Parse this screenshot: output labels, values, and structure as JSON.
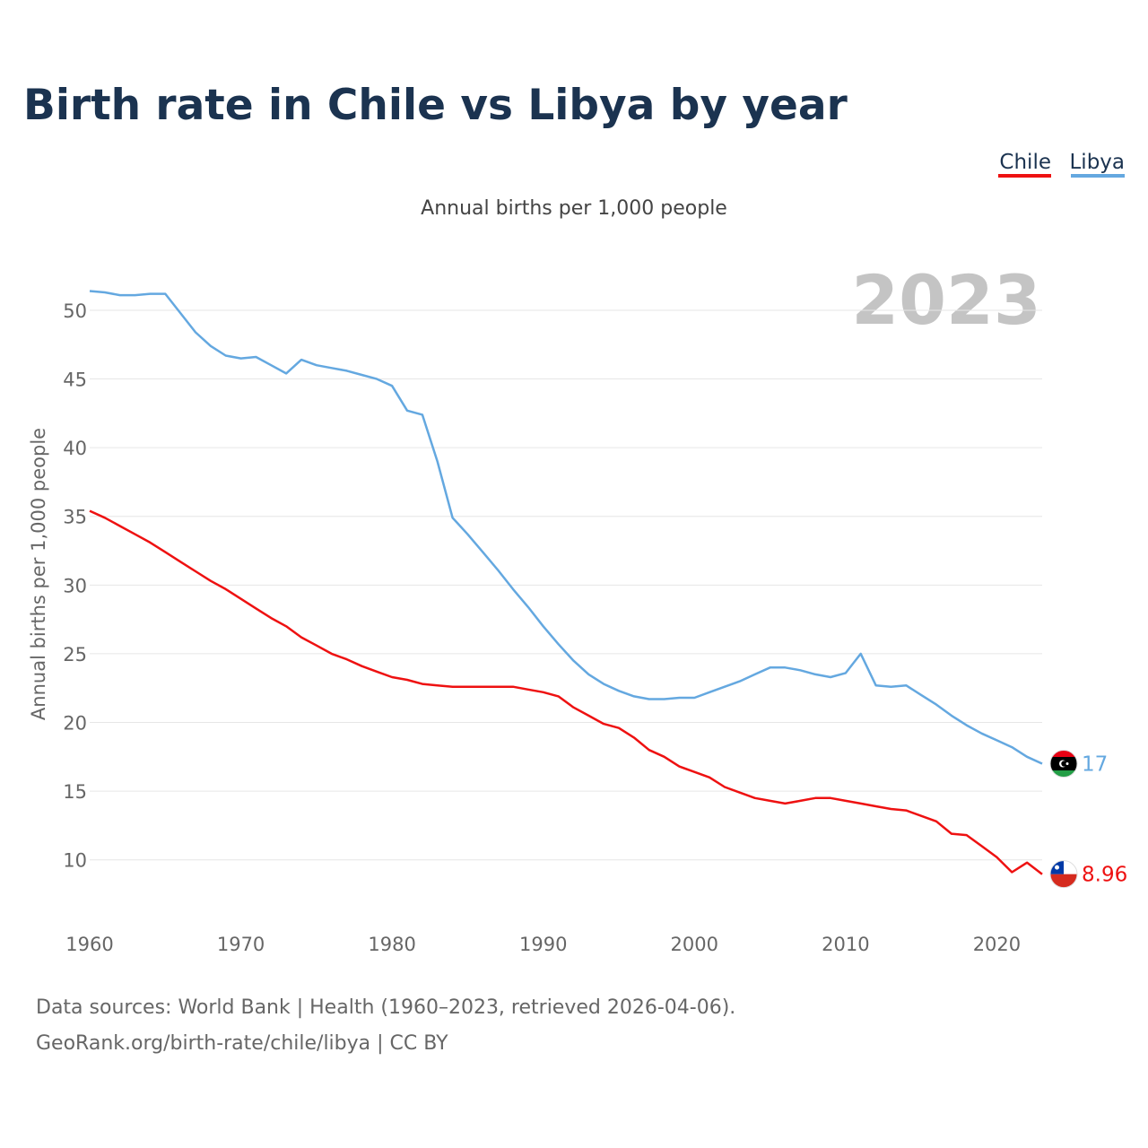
{
  "chart_data": {
    "type": "line",
    "title": "Birth rate in Chile vs Libya by year",
    "subtitle": "Annual births per 1,000 people",
    "ylabel": "Annual births per 1,000 people",
    "xlabel": "",
    "year_label": "2023",
    "xlim": [
      1960,
      2023
    ],
    "ylim": [
      6,
      53
    ],
    "x_ticks": [
      1960,
      1970,
      1980,
      1990,
      2000,
      2010,
      2020
    ],
    "y_ticks": [
      10,
      15,
      20,
      25,
      30,
      35,
      40,
      45,
      50
    ],
    "legend_position": "top-right",
    "grid": true,
    "x": [
      1960,
      1961,
      1962,
      1963,
      1964,
      1965,
      1966,
      1967,
      1968,
      1969,
      1970,
      1971,
      1972,
      1973,
      1974,
      1975,
      1976,
      1977,
      1978,
      1979,
      1980,
      1981,
      1982,
      1983,
      1984,
      1985,
      1986,
      1987,
      1988,
      1989,
      1990,
      1991,
      1992,
      1993,
      1994,
      1995,
      1996,
      1997,
      1998,
      1999,
      2000,
      2001,
      2002,
      2003,
      2004,
      2005,
      2006,
      2007,
      2008,
      2009,
      2010,
      2011,
      2012,
      2013,
      2014,
      2015,
      2016,
      2017,
      2018,
      2019,
      2020,
      2021,
      2022,
      2023
    ],
    "series": [
      {
        "name": "Chile",
        "color": "#ee1111",
        "end_label": "8.96",
        "flag": "chile",
        "values": [
          35.4,
          34.9,
          34.3,
          33.7,
          33.1,
          32.4,
          31.7,
          31.0,
          30.3,
          29.7,
          29.0,
          28.3,
          27.6,
          27.0,
          26.2,
          25.6,
          25.0,
          24.6,
          24.1,
          23.7,
          23.3,
          23.1,
          22.8,
          22.7,
          22.6,
          22.6,
          22.6,
          22.6,
          22.6,
          22.4,
          22.2,
          21.9,
          21.1,
          20.5,
          19.9,
          19.6,
          18.9,
          18.0,
          17.5,
          16.8,
          16.4,
          16.0,
          15.3,
          14.9,
          14.5,
          14.3,
          14.1,
          14.3,
          14.5,
          14.5,
          14.3,
          14.1,
          13.9,
          13.7,
          13.6,
          13.2,
          12.8,
          11.9,
          11.8,
          11.0,
          10.2,
          9.1,
          9.8,
          8.96
        ]
      },
      {
        "name": "Libya",
        "color": "#64a8e0",
        "end_label": "17",
        "flag": "libya",
        "values": [
          51.4,
          51.3,
          51.1,
          51.1,
          51.2,
          51.2,
          49.8,
          48.4,
          47.4,
          46.7,
          46.5,
          46.6,
          46.0,
          45.4,
          46.4,
          46.0,
          45.8,
          45.6,
          45.3,
          45.0,
          44.5,
          42.7,
          42.4,
          39.0,
          34.9,
          33.7,
          32.4,
          31.1,
          29.7,
          28.4,
          27.0,
          25.7,
          24.5,
          23.5,
          22.8,
          22.3,
          21.9,
          21.7,
          21.7,
          21.8,
          21.8,
          22.2,
          22.6,
          23.0,
          23.5,
          24.0,
          24.0,
          23.8,
          23.5,
          23.3,
          23.6,
          25.0,
          22.7,
          22.6,
          22.7,
          22.0,
          21.3,
          20.5,
          19.8,
          19.2,
          18.7,
          18.2,
          17.5,
          17.0
        ]
      }
    ]
  },
  "source_line1": "Data sources: World Bank | Health (1960–2023, retrieved 2026-04-06).",
  "source_line2": "GeoRank.org/birth-rate/chile/libya | CC BY"
}
